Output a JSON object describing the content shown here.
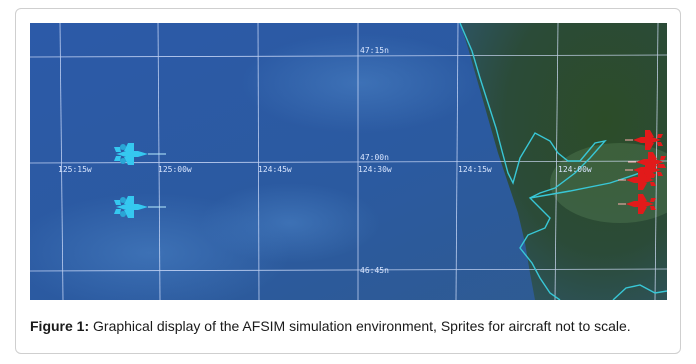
{
  "figure": {
    "label": "Figure 1:",
    "text": " Graphical display of the AFSIM simulation environment, Sprites for aircraft not to scale."
  },
  "map": {
    "latitude_labels": [
      "47:15n",
      "47:00n",
      "46:45n"
    ],
    "longitude_labels": [
      "125:15w",
      "125:00w",
      "124:45w",
      "124:30w",
      "124:15w",
      "124:00w"
    ],
    "colors": {
      "ocean": "#2f5aa0",
      "land": "#2e4a2a",
      "grid": "#d7e3ff",
      "coastline": "#38c7d6",
      "blue_aircraft": "#35c8f0",
      "red_aircraft": "#e21a1a"
    },
    "sprites": {
      "blue_team_count": 2,
      "red_team_count": 5
    }
  }
}
